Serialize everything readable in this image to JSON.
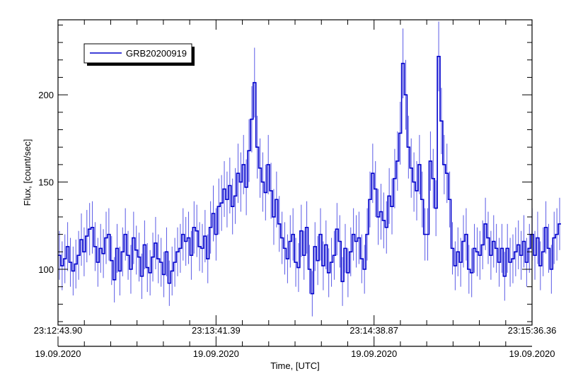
{
  "chart_data": {
    "type": "line",
    "step": true,
    "xlabel": "Time, [UTC]",
    "ylabel": "Flux, [count/sec]",
    "xlim": [
      0,
      172.46
    ],
    "ylim": [
      68,
      243
    ],
    "grid": false,
    "legend": {
      "placement": "top-left",
      "entries": [
        "GRB20200919"
      ]
    },
    "x_ticks": [
      {
        "value": 0,
        "time": "23:12:43.90",
        "date": "19.09.2020"
      },
      {
        "value": 57.49,
        "time": "23:13:41.39",
        "date": "19.09.2020"
      },
      {
        "value": 114.97,
        "time": "23:14:38.87",
        "date": "19.09.2020"
      },
      {
        "value": 172.46,
        "time": "23:15:36.36",
        "date": "19.09.2020"
      }
    ],
    "y_ticks": [
      100,
      150,
      200
    ],
    "series": [
      {
        "name": "GRB20200919",
        "color": "#0000cc",
        "errcolor": "#5a5ae6",
        "bin_width": 1.0,
        "values": [
          108,
          102,
          106,
          113,
          104,
          99,
          103,
          108,
          117,
          110,
          119,
          123,
          124,
          113,
          104,
          112,
          109,
          118,
          120,
          105,
          94,
          112,
          99,
          110,
          120,
          108,
          100,
          118,
          111,
          107,
          96,
          114,
          101,
          98,
          107,
          115,
          106,
          104,
          97,
          110,
          92,
          99,
          104,
          110,
          112,
          120,
          116,
          118,
          108,
          124,
          122,
          113,
          112,
          119,
          106,
          124,
          132,
          120,
          136,
          138,
          146,
          140,
          148,
          136,
          142,
          155,
          150,
          160,
          147,
          168,
          186,
          207,
          170,
          158,
          150,
          144,
          160,
          145,
          130,
          140,
          126,
          118,
          112,
          106,
          116,
          120,
          104,
          101,
          122,
          108,
          124,
          100,
          86,
          113,
          105,
          120,
          102,
          114,
          98,
          104,
          108,
          123,
          116,
          93,
          112,
          98,
          110,
          120,
          116,
          118,
          106,
          100,
          120,
          140,
          155,
          146,
          130,
          133,
          128,
          124,
          142,
          136,
          152,
          162,
          178,
          218,
          200,
          170,
          158,
          150,
          145,
          160,
          140,
          120,
          120,
          162,
          152,
          135,
          222,
          185,
          160,
          155,
          140,
          112,
          102,
          110,
          104,
          116,
          120,
          100,
          98,
          112,
          110,
          108,
          114,
          126,
          118,
          108,
          116,
          112,
          104,
          112,
          96,
          112,
          104,
          106,
          110,
          114,
          108,
          116,
          104,
          112,
          120,
          108,
          118,
          102,
          110,
          124,
          112,
          100,
          118,
          120,
          126
        ],
        "errors": [
          14,
          14,
          14,
          14,
          14,
          14,
          14,
          14,
          15,
          14,
          15,
          15,
          15,
          14,
          14,
          14,
          14,
          15,
          15,
          14,
          13,
          14,
          14,
          14,
          15,
          14,
          14,
          15,
          14,
          14,
          13,
          14,
          14,
          13,
          14,
          15,
          14,
          14,
          13,
          14,
          13,
          14,
          14,
          14,
          14,
          15,
          14,
          15,
          14,
          15,
          15,
          14,
          14,
          15,
          14,
          15,
          16,
          15,
          16,
          16,
          16,
          16,
          16,
          16,
          16,
          17,
          17,
          17,
          16,
          18,
          19,
          20,
          18,
          17,
          17,
          16,
          17,
          16,
          16,
          16,
          16,
          15,
          15,
          14,
          15,
          15,
          14,
          14,
          15,
          14,
          15,
          14,
          13,
          14,
          14,
          15,
          14,
          14,
          14,
          14,
          14,
          15,
          15,
          14,
          14,
          14,
          14,
          15,
          15,
          15,
          14,
          14,
          15,
          16,
          17,
          16,
          16,
          16,
          16,
          15,
          16,
          16,
          17,
          17,
          18,
          20,
          20,
          18,
          17,
          17,
          17,
          17,
          16,
          15,
          15,
          17,
          17,
          16,
          20,
          19,
          17,
          17,
          16,
          15,
          14,
          14,
          14,
          15,
          15,
          14,
          14,
          14,
          14,
          14,
          14,
          15,
          15,
          14,
          15,
          14,
          14,
          14,
          14,
          14,
          14,
          14,
          14,
          14,
          14,
          15,
          14,
          14,
          15,
          14,
          15,
          14,
          14,
          15,
          14,
          14,
          15,
          15,
          15
        ]
      }
    ]
  }
}
